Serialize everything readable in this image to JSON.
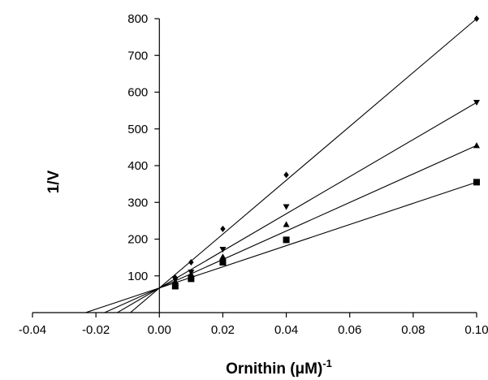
{
  "chart_data": {
    "type": "scatter",
    "title": "",
    "xlabel": "Ornithin  (μM)",
    "xlabel_sup": "-1",
    "ylabel": "1/V",
    "xlim": [
      -0.04,
      0.1
    ],
    "ylim": [
      0,
      800
    ],
    "x_ticks": [
      -0.04,
      -0.02,
      0.0,
      0.02,
      0.04,
      0.06,
      0.08,
      0.1
    ],
    "x_tick_labels": [
      "-0.04",
      "-0.02",
      "0.00",
      "0.02",
      "0.04",
      "0.06",
      "0.08",
      "0.10"
    ],
    "y_ticks": [
      100,
      200,
      300,
      400,
      500,
      600,
      700,
      800
    ],
    "y_tick_labels": [
      "100",
      "200",
      "300",
      "400",
      "500",
      "600",
      "700",
      "800"
    ],
    "grid": false,
    "legend": "none",
    "series": [
      {
        "marker": "diamond",
        "points": [
          [
            0.005,
            95
          ],
          [
            0.01,
            137
          ],
          [
            0.02,
            228
          ],
          [
            0.04,
            375
          ],
          [
            0.1,
            800
          ]
        ],
        "fit": {
          "slope": 7330,
          "intercept": 67,
          "x_start": -0.0092
        }
      },
      {
        "marker": "triangle-down",
        "points": [
          [
            0.005,
            90
          ],
          [
            0.01,
            110
          ],
          [
            0.02,
            172
          ],
          [
            0.04,
            288
          ],
          [
            0.1,
            572
          ]
        ],
        "fit": {
          "slope": 5050,
          "intercept": 67,
          "x_start": -0.0133
        }
      },
      {
        "marker": "triangle-up",
        "points": [
          [
            0.005,
            85
          ],
          [
            0.01,
            105
          ],
          [
            0.02,
            152
          ],
          [
            0.04,
            240
          ],
          [
            0.1,
            455
          ]
        ],
        "fit": {
          "slope": 3880,
          "intercept": 67,
          "x_start": -0.0173
        }
      },
      {
        "marker": "square",
        "points": [
          [
            0.005,
            72
          ],
          [
            0.01,
            92
          ],
          [
            0.02,
            137
          ],
          [
            0.04,
            198
          ],
          [
            0.1,
            355
          ]
        ],
        "fit": {
          "slope": 2880,
          "intercept": 67,
          "x_start": -0.0233
        }
      }
    ]
  }
}
